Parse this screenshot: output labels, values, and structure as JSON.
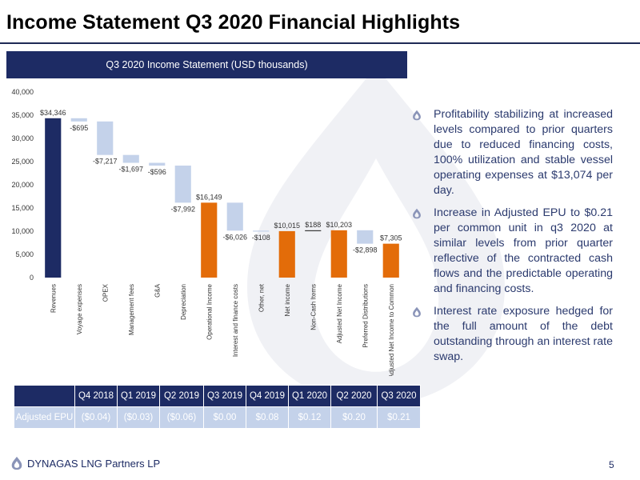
{
  "page": {
    "title": "Income Statement Q3 2020 Financial Highlights",
    "page_number": "5",
    "company": "DYNAGAS LNG Partners LP"
  },
  "colors": {
    "navy": "#1d2b64",
    "orange": "#e36c09",
    "light_blue": "#c4d2ea",
    "text_blue": "#2b3a6e"
  },
  "chart_header": "Q3 2020 Income Statement (USD thousands)",
  "chart_data": {
    "type": "bar",
    "subtype": "waterfall",
    "title": "Q3 2020 Income Statement (USD thousands)",
    "ylim": [
      0,
      40000
    ],
    "yticks": [
      "0",
      "5,000",
      "10,000",
      "15,000",
      "20,000",
      "25,000",
      "30,000",
      "35,000",
      "40,000"
    ],
    "grid": false,
    "bars": [
      {
        "category": "Revenues",
        "start": 0,
        "end": 34346,
        "label": "$34,346",
        "kind": "total_navy"
      },
      {
        "category": "Voyage expenses",
        "start": 34346,
        "end": 33651,
        "label": "-$695",
        "kind": "delta"
      },
      {
        "category": "OPEX",
        "start": 33651,
        "end": 26434,
        "label": "-$7,217",
        "kind": "delta"
      },
      {
        "category": "Management fees",
        "start": 26434,
        "end": 24737,
        "label": "-$1,697",
        "kind": "delta"
      },
      {
        "category": "G&A",
        "start": 24737,
        "end": 24141,
        "label": "-$596",
        "kind": "delta"
      },
      {
        "category": "Depreciation",
        "start": 24141,
        "end": 16149,
        "label": "-$7,992",
        "kind": "delta"
      },
      {
        "category": "Operational Income",
        "start": 0,
        "end": 16149,
        "label": "$16,149",
        "kind": "total"
      },
      {
        "category": "Interest and  finance costs",
        "start": 16149,
        "end": 10123,
        "label": "-$6,026",
        "kind": "delta"
      },
      {
        "category": "Other, net",
        "start": 10123,
        "end": 10015,
        "label": "-$108",
        "kind": "delta"
      },
      {
        "category": "Net income",
        "start": 0,
        "end": 10015,
        "label": "$10,015",
        "kind": "total"
      },
      {
        "category": "Non-Cash Items",
        "start": 10015,
        "end": 10203,
        "label": "$188",
        "kind": "delta"
      },
      {
        "category": "Adjusted Net Income",
        "start": 0,
        "end": 10203,
        "label": "$10,203",
        "kind": "total"
      },
      {
        "category": "Preferred Distributions",
        "start": 10203,
        "end": 7305,
        "label": "-$2,898",
        "kind": "delta"
      },
      {
        "category": "Adjusted Net Income to Common",
        "start": 0,
        "end": 7305,
        "label": "$7,305",
        "kind": "total"
      }
    ]
  },
  "bullets": [
    "Profitability stabilizing at increased levels compared to prior quarters due to reduced financing costs, 100% utilization and stable vessel operating expenses at $13,074 per day.",
    "Increase in Adjusted EPU to $0.21 per common unit in q3 2020 at similar levels from prior quarter reflective of the contracted cash flows and  the predictable operating and financing costs.",
    "Interest rate exposure hedged for the full amount of the debt outstanding through an interest rate swap."
  ],
  "epu_table": {
    "corner": "",
    "headers": [
      "Q4 2018",
      "Q1 2019",
      "Q2 2019",
      "Q3 2019",
      "Q4 2019",
      "Q1 2020",
      "Q2 2020",
      "Q3 2020"
    ],
    "row_label": "Adjusted EPU",
    "values": [
      "($0.04)",
      "($0.03)",
      "($0.06)",
      "$0.00",
      "$0.08",
      "$0.12",
      "$0.20",
      "$0.21"
    ]
  }
}
